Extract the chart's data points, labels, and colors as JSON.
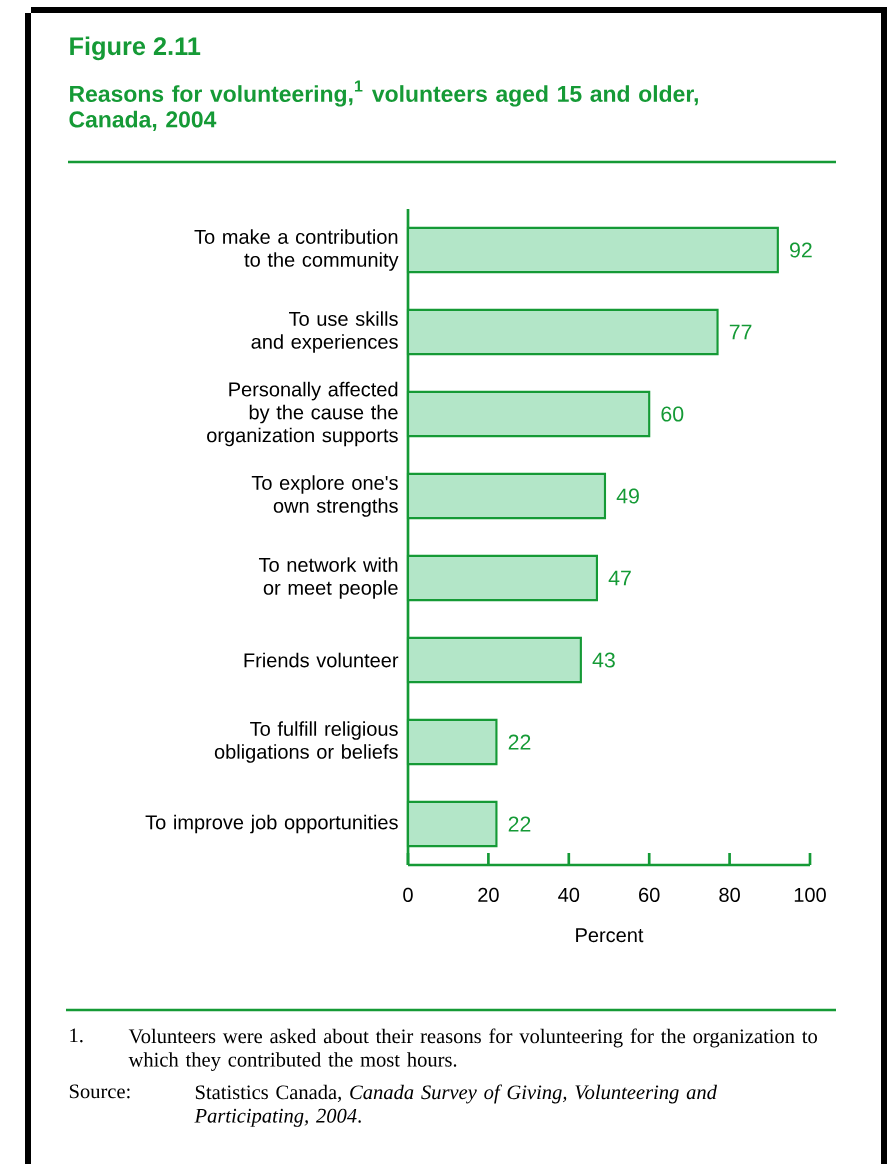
{
  "chart_data": {
    "type": "bar",
    "orientation": "horizontal",
    "title": "Figure 2.11",
    "subtitle": "Reasons for volunteering,$^{1}$ volunteers aged 15 and older, Canada, 2004",
    "categories": [
      "To make a contribution to the community",
      "To use skills and experiences",
      "Personally affected by the cause the organization supports",
      "To explore one's own strengths",
      "To network with or meet people",
      "Friends volunteer",
      "To fulfill religious obligations or beliefs",
      "To improve job opportunities"
    ],
    "values": [
      92,
      77,
      60,
      49,
      47,
      43,
      22,
      22
    ],
    "color": "#b3e6c8",
    "xlim": [
      0,
      100
    ],
    "xticks": [
      0,
      20,
      40,
      60,
      80,
      100
    ],
    "xlabel": "Percent",
    "data_labels": true,
    "annotations": [
      "1.",
      "Volunteers were asked about their reasons for volunteering for the organization to which they contributed the most hours.",
      "Source:",
      "Statistics Canada, *Canada Survey of Giving, Volunteering and Participating, 2004*."
    ]
  }
}
